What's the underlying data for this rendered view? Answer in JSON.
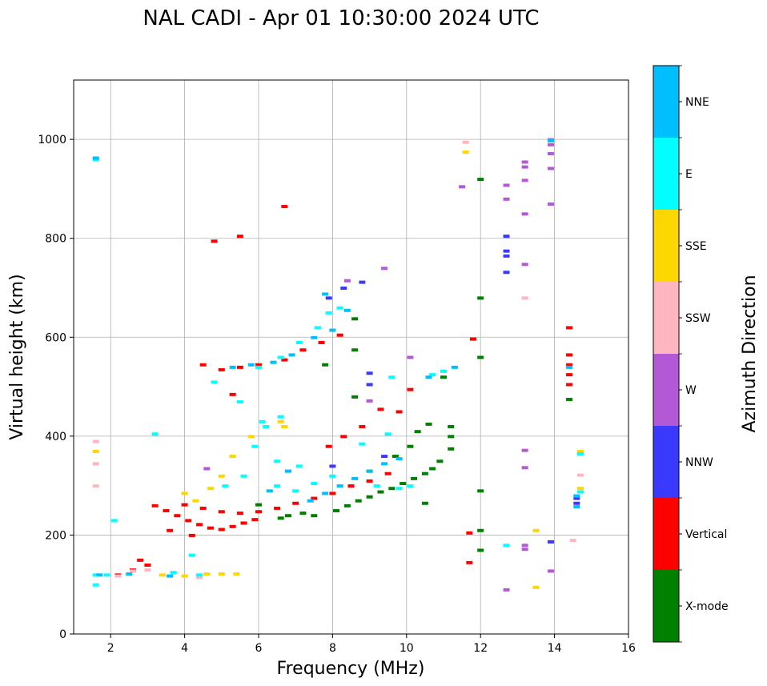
{
  "chart_data": {
    "type": "scatter",
    "title": "NAL CADI - Apr 01 10:30:00 2024 UTC",
    "xlabel": "Frequency (MHz)",
    "ylabel": "Virtual height (km)",
    "xlim": [
      1,
      16
    ],
    "ylim": [
      0,
      1120
    ],
    "xticks": [
      2,
      4,
      6,
      8,
      10,
      12,
      14,
      16
    ],
    "yticks": [
      0,
      200,
      400,
      600,
      800,
      1000
    ],
    "grid": true,
    "colorbar": {
      "label": "Azimuth Direction",
      "categories": [
        {
          "name": "X-mode",
          "color": "#008000"
        },
        {
          "name": "Vertical",
          "color": "#ff0000"
        },
        {
          "name": "NNW",
          "color": "#3a3aff"
        },
        {
          "name": "W",
          "color": "#b459d6"
        },
        {
          "name": "SSW",
          "color": "#ffb6c1"
        },
        {
          "name": "SSE",
          "color": "#ffd700"
        },
        {
          "name": "E",
          "color": "#00ffff"
        },
        {
          "name": "NNE",
          "color": "#00bfff"
        }
      ]
    },
    "series": [
      {
        "name": "X-mode",
        "points": [
          [
            8.1,
            250
          ],
          [
            8.4,
            260
          ],
          [
            8.7,
            270
          ],
          [
            9.0,
            278
          ],
          [
            9.3,
            288
          ],
          [
            9.6,
            295
          ],
          [
            9.9,
            305
          ],
          [
            10.2,
            315
          ],
          [
            10.5,
            325
          ],
          [
            10.7,
            335
          ],
          [
            10.9,
            350
          ],
          [
            11.2,
            375
          ],
          [
            11.2,
            400
          ],
          [
            11.2,
            420
          ],
          [
            10.3,
            410
          ],
          [
            10.6,
            425
          ],
          [
            10.1,
            380
          ],
          [
            9.7,
            360
          ],
          [
            9.0,
            330
          ],
          [
            8.5,
            300
          ],
          [
            7.5,
            240
          ],
          [
            6.6,
            235
          ],
          [
            6.0,
            262
          ],
          [
            12.0,
            920
          ],
          [
            12.0,
            680
          ],
          [
            12.0,
            560
          ],
          [
            12.0,
            290
          ],
          [
            12.0,
            210
          ],
          [
            12.0,
            170
          ],
          [
            14.4,
            475
          ],
          [
            8.6,
            638
          ],
          [
            8.6,
            575
          ],
          [
            7.8,
            545
          ],
          [
            8.6,
            480
          ],
          [
            11.0,
            520
          ],
          [
            10.5,
            265
          ],
          [
            6.8,
            240
          ],
          [
            7.2,
            245
          ]
        ]
      },
      {
        "name": "Vertical",
        "points": [
          [
            3.2,
            260
          ],
          [
            3.5,
            250
          ],
          [
            3.8,
            240
          ],
          [
            4.1,
            230
          ],
          [
            4.4,
            222
          ],
          [
            4.7,
            215
          ],
          [
            5.0,
            212
          ],
          [
            5.3,
            218
          ],
          [
            5.6,
            225
          ],
          [
            5.9,
            232
          ],
          [
            4.0,
            262
          ],
          [
            4.5,
            255
          ],
          [
            5.0,
            248
          ],
          [
            5.5,
            245
          ],
          [
            6.0,
            248
          ],
          [
            6.5,
            255
          ],
          [
            7.0,
            265
          ],
          [
            7.5,
            275
          ],
          [
            8.0,
            285
          ],
          [
            8.5,
            300
          ],
          [
            9.0,
            310
          ],
          [
            9.5,
            325
          ],
          [
            4.2,
            200
          ],
          [
            3.6,
            210
          ],
          [
            2.8,
            150
          ],
          [
            2.6,
            130
          ],
          [
            2.2,
            120
          ],
          [
            3.0,
            140
          ],
          [
            4.5,
            545
          ],
          [
            5.0,
            535
          ],
          [
            5.5,
            540
          ],
          [
            6.0,
            545
          ],
          [
            6.7,
            555
          ],
          [
            7.2,
            575
          ],
          [
            7.7,
            590
          ],
          [
            8.2,
            605
          ],
          [
            6.7,
            865
          ],
          [
            4.8,
            795
          ],
          [
            5.5,
            805
          ],
          [
            14.4,
            620
          ],
          [
            14.4,
            565
          ],
          [
            14.4,
            545
          ],
          [
            14.4,
            525
          ],
          [
            14.4,
            505
          ],
          [
            11.7,
            205
          ],
          [
            11.7,
            145
          ],
          [
            11.8,
            597
          ],
          [
            9.3,
            455
          ],
          [
            9.8,
            450
          ],
          [
            10.1,
            495
          ],
          [
            7.9,
            380
          ],
          [
            8.3,
            400
          ],
          [
            8.8,
            420
          ],
          [
            5.3,
            485
          ]
        ]
      },
      {
        "name": "NNW",
        "points": [
          [
            7.9,
            680
          ],
          [
            8.3,
            700
          ],
          [
            8.8,
            712
          ],
          [
            9.0,
            528
          ],
          [
            9.0,
            505
          ],
          [
            12.7,
            805
          ],
          [
            12.7,
            775
          ],
          [
            12.7,
            765
          ],
          [
            12.7,
            732
          ],
          [
            13.9,
            187
          ],
          [
            14.6,
            275
          ],
          [
            14.6,
            265
          ],
          [
            8.0,
            340
          ],
          [
            9.4,
            360
          ]
        ]
      },
      {
        "name": "W",
        "points": [
          [
            12.7,
            908
          ],
          [
            12.7,
            880
          ],
          [
            13.2,
            955
          ],
          [
            13.2,
            945
          ],
          [
            13.2,
            918
          ],
          [
            13.2,
            850
          ],
          [
            13.2,
            748
          ],
          [
            13.9,
            1000
          ],
          [
            13.9,
            990
          ],
          [
            13.9,
            972
          ],
          [
            13.9,
            942
          ],
          [
            13.9,
            870
          ],
          [
            13.2,
            372
          ],
          [
            13.2,
            337
          ],
          [
            13.2,
            180
          ],
          [
            13.9,
            128
          ],
          [
            12.7,
            90
          ],
          [
            11.5,
            905
          ],
          [
            10.1,
            560
          ],
          [
            8.4,
            715
          ],
          [
            9.4,
            740
          ],
          [
            4.6,
            335
          ],
          [
            9.0,
            472
          ],
          [
            13.2,
            172
          ]
        ]
      },
      {
        "name": "SSW",
        "points": [
          [
            1.6,
            390
          ],
          [
            1.6,
            345
          ],
          [
            1.6,
            300
          ],
          [
            2.6,
            128
          ],
          [
            2.2,
            118
          ],
          [
            13.2,
            680
          ],
          [
            14.5,
            190
          ],
          [
            14.7,
            322
          ],
          [
            11.6,
            995
          ],
          [
            4.4,
            115
          ],
          [
            3.0,
            130
          ]
        ]
      },
      {
        "name": "SSE",
        "points": [
          [
            4.6,
            122
          ],
          [
            5.0,
            122
          ],
          [
            5.4,
            122
          ],
          [
            4.0,
            118
          ],
          [
            3.4,
            120
          ],
          [
            6.6,
            430
          ],
          [
            5.8,
            400
          ],
          [
            5.3,
            360
          ],
          [
            5.0,
            320
          ],
          [
            4.7,
            295
          ],
          [
            4.3,
            270
          ],
          [
            4.0,
            285
          ],
          [
            6.7,
            420
          ],
          [
            13.5,
            210
          ],
          [
            13.5,
            95
          ],
          [
            11.6,
            975
          ],
          [
            14.7,
            370
          ],
          [
            14.7,
            295
          ],
          [
            1.6,
            370
          ]
        ]
      },
      {
        "name": "E",
        "points": [
          [
            5.1,
            300
          ],
          [
            5.6,
            320
          ],
          [
            5.9,
            380
          ],
          [
            6.2,
            420
          ],
          [
            6.6,
            440
          ],
          [
            6.1,
            430
          ],
          [
            5.5,
            470
          ],
          [
            4.8,
            510
          ],
          [
            6.0,
            540
          ],
          [
            6.6,
            560
          ],
          [
            7.1,
            590
          ],
          [
            7.6,
            620
          ],
          [
            7.9,
            650
          ],
          [
            8.2,
            660
          ],
          [
            9.2,
            300
          ],
          [
            9.8,
            295
          ],
          [
            10.1,
            300
          ],
          [
            7.0,
            290
          ],
          [
            7.5,
            305
          ],
          [
            8.0,
            320
          ],
          [
            1.6,
            120
          ],
          [
            1.6,
            100
          ],
          [
            1.9,
            120
          ],
          [
            4.2,
            160
          ],
          [
            4.4,
            120
          ],
          [
            3.7,
            125
          ],
          [
            6.5,
            300
          ],
          [
            9.6,
            520
          ],
          [
            10.7,
            525
          ],
          [
            11.0,
            532
          ],
          [
            12.7,
            180
          ],
          [
            14.7,
            365
          ],
          [
            14.7,
            288
          ],
          [
            1.6,
            960
          ],
          [
            2.1,
            230
          ],
          [
            3.2,
            405
          ],
          [
            6.5,
            350
          ],
          [
            7.1,
            340
          ],
          [
            8.8,
            385
          ],
          [
            9.5,
            405
          ]
        ]
      },
      {
        "name": "NNE",
        "points": [
          [
            7.4,
            270
          ],
          [
            7.8,
            285
          ],
          [
            8.2,
            300
          ],
          [
            8.6,
            315
          ],
          [
            9.0,
            330
          ],
          [
            9.4,
            345
          ],
          [
            9.8,
            355
          ],
          [
            5.3,
            540
          ],
          [
            5.8,
            545
          ],
          [
            6.4,
            550
          ],
          [
            6.9,
            565
          ],
          [
            7.5,
            600
          ],
          [
            8.0,
            615
          ],
          [
            8.4,
            655
          ],
          [
            7.8,
            688
          ],
          [
            14.6,
            280
          ],
          [
            14.6,
            258
          ],
          [
            14.4,
            540
          ],
          [
            13.9,
            998
          ],
          [
            1.6,
            963
          ],
          [
            1.7,
            120
          ],
          [
            2.5,
            122
          ],
          [
            3.6,
            118
          ],
          [
            6.3,
            290
          ],
          [
            6.8,
            330
          ],
          [
            11.3,
            540
          ],
          [
            10.6,
            520
          ]
        ]
      }
    ]
  }
}
